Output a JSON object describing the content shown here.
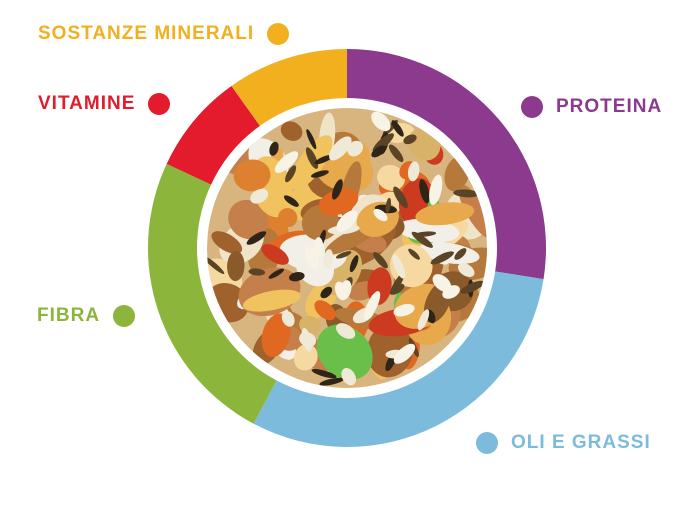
{
  "chart_data": {
    "type": "pie",
    "variant": "donut",
    "title": "",
    "background": "#FFFFFF",
    "legend_position": "around-ring",
    "geometry_note": "ring with photo of seed/nut mix in the center",
    "segments": [
      {
        "label": "PROTEINA",
        "color": "#8B3A8E",
        "start_angle": 0,
        "end_angle": 99,
        "percent_of_ring": 27.5,
        "legend_dot_side": "left"
      },
      {
        "label": "OLI E GRASSI",
        "color": "#7DBBDC",
        "start_angle": 99,
        "end_angle": 208,
        "percent_of_ring": 30.3,
        "legend_dot_side": "left"
      },
      {
        "label": "FIBRA",
        "color": "#8CB63B",
        "start_angle": 208,
        "end_angle": 295,
        "percent_of_ring": 24.2,
        "legend_dot_side": "right"
      },
      {
        "label": "VITAMINE",
        "color": "#E31B2C",
        "start_angle": 295,
        "end_angle": 324.5,
        "percent_of_ring": 8.2,
        "legend_dot_side": "right"
      },
      {
        "label": "SOSTANZE MINERALI",
        "color": "#F2B01E",
        "start_angle": 324.5,
        "end_angle": 360,
        "percent_of_ring": 9.9,
        "legend_dot_side": "right"
      }
    ],
    "center": {
      "description": "circular photo of mixed seeds, nuts, peanuts and dried fruit"
    }
  }
}
